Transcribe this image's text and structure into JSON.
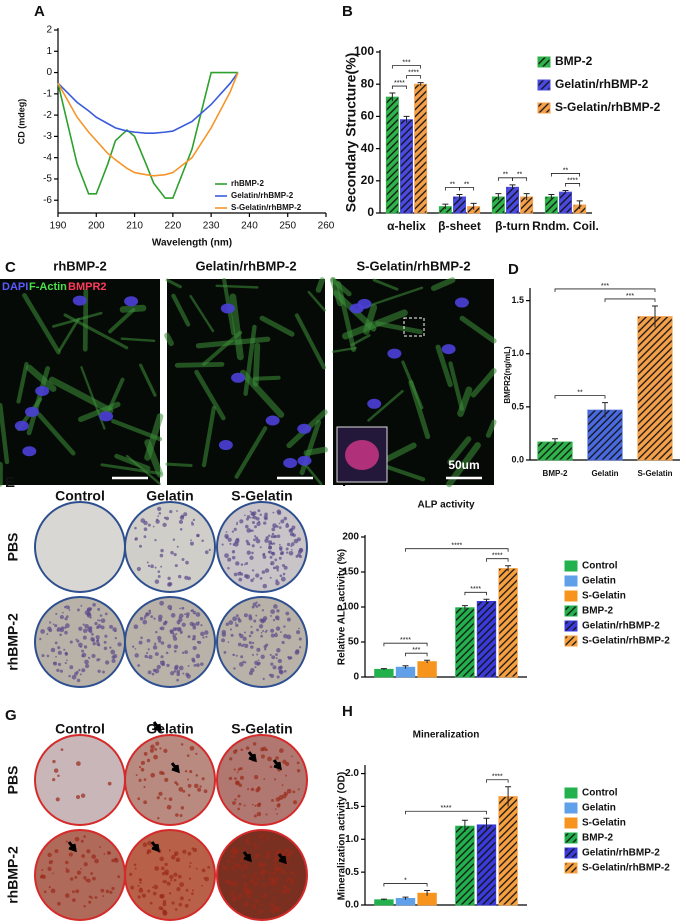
{
  "chart_data": [
    {
      "panel": "A",
      "type": "line",
      "xlabel": "Wavelength (nm)",
      "ylabel": "CD (mdeg)",
      "x": [
        190,
        195,
        198,
        200,
        203,
        205,
        208,
        210,
        213,
        215,
        218,
        220,
        225,
        230,
        235,
        237
      ],
      "xlim": [
        190,
        260
      ],
      "xticks": [
        190,
        200,
        210,
        220,
        230,
        240,
        250,
        260
      ],
      "ylim": [
        -6.6,
        2
      ],
      "yticks": [
        -6,
        -5,
        -4,
        -3,
        -2,
        -1,
        0,
        1,
        2
      ],
      "legend": "lower right",
      "series": [
        {
          "name": "rhBMP-2",
          "color": "#2ea02e",
          "values": [
            -0.5,
            -4.3,
            -5.7,
            -5.7,
            -4.3,
            -3.2,
            -2.7,
            -3.0,
            -4.3,
            -5.2,
            -5.9,
            -5.9,
            -3.6,
            0,
            0,
            0
          ]
        },
        {
          "name": "Gelatin/rhBMP-2",
          "color": "#3a5bdc",
          "values": [
            -0.5,
            -1.4,
            -1.8,
            -2.1,
            -2.4,
            -2.6,
            -2.75,
            -2.8,
            -2.85,
            -2.85,
            -2.8,
            -2.75,
            -2.3,
            -1.5,
            -0.5,
            0
          ]
        },
        {
          "name": "S-Gelatin/rhBMP-2",
          "color": "#f5952a",
          "values": [
            -0.5,
            -2.1,
            -2.8,
            -3.2,
            -3.8,
            -4.1,
            -4.5,
            -4.7,
            -4.8,
            -4.85,
            -4.8,
            -4.7,
            -4.0,
            -2.6,
            -0.9,
            0
          ]
        }
      ]
    },
    {
      "panel": "B",
      "type": "bar",
      "ylabel": "Secondary Structure(%)",
      "categories": [
        "α-helix",
        "β-sheet",
        "β-turn",
        "Rndm. Coil."
      ],
      "ylim": [
        0,
        100
      ],
      "yticks": [
        0,
        20,
        40,
        60,
        80,
        100
      ],
      "legend": "right",
      "series": [
        {
          "name": "BMP-2",
          "color": "#2fb34a",
          "hatch": true,
          "values": [
            72,
            4,
            10,
            10
          ],
          "errors": [
            2.5,
            1.5,
            2,
            1.5
          ]
        },
        {
          "name": "Gelatin/rhBMP-2",
          "color": "#4a4ae0",
          "hatch": true,
          "values": [
            58,
            10,
            16,
            13
          ],
          "errors": [
            2,
            1.5,
            1.5,
            1
          ]
        },
        {
          "name": "S-Gelatin/rhBMP-2",
          "color": "#f5a04a",
          "hatch": true,
          "values": [
            80,
            4,
            10,
            5
          ],
          "errors": [
            1,
            2,
            2,
            2.5
          ]
        }
      ],
      "annotations": [
        {
          "text": "****",
          "from": [
            0,
            0
          ],
          "to": [
            0,
            1
          ]
        },
        {
          "text": "****",
          "from": [
            0,
            1
          ],
          "to": [
            0,
            2
          ]
        },
        {
          "text": "***",
          "from": [
            0,
            0
          ],
          "to": [
            0,
            2
          ]
        },
        {
          "text": "**",
          "from": [
            1,
            0
          ],
          "to": [
            1,
            1
          ]
        },
        {
          "text": "**",
          "from": [
            1,
            1
          ],
          "to": [
            1,
            2
          ]
        },
        {
          "text": "**",
          "from": [
            2,
            0
          ],
          "to": [
            2,
            1
          ]
        },
        {
          "text": "**",
          "from": [
            2,
            1
          ],
          "to": [
            2,
            2
          ]
        },
        {
          "text": "****",
          "from": [
            3,
            1
          ],
          "to": [
            3,
            2
          ]
        },
        {
          "text": "**",
          "from": [
            3,
            0
          ],
          "to": [
            3,
            2
          ]
        }
      ]
    },
    {
      "panel": "D",
      "type": "bar",
      "ylabel": "BMPR2(ng/mL)",
      "categories": [
        "BMP-2",
        "Gelatin",
        "S-Gelatin"
      ],
      "values": [
        0.17,
        0.47,
        1.35
      ],
      "errors": [
        0.03,
        0.07,
        0.1
      ],
      "colors": [
        "#2fb34a",
        "#4a6ae0",
        "#f5a04a"
      ],
      "hatch": true,
      "ylim": [
        0,
        1.6
      ],
      "yticks": [
        {
          "value": 0,
          "label": "0.0"
        },
        0.5,
        {
          "value": 1,
          "label": "1.0"
        },
        1.5
      ],
      "annotations": [
        {
          "text": "**",
          "from": [
            0,
            0
          ],
          "to": [
            1,
            0
          ]
        },
        {
          "text": "***",
          "from": [
            1,
            0
          ],
          "to": [
            2,
            0
          ]
        },
        {
          "text": "***",
          "from": [
            0,
            0
          ],
          "to": [
            2,
            0
          ]
        }
      ]
    },
    {
      "panel": "F",
      "type": "bar",
      "title": "ALP activity",
      "ylabel": "Relative ALP activity (%)",
      "categories": [
        null,
        null
      ],
      "ylim": [
        0,
        200
      ],
      "yticks": [
        0,
        50,
        100,
        150,
        200
      ],
      "legend": "right",
      "series": [
        {
          "name": "Control",
          "color": "#22b14c",
          "hatch": false,
          "values": [
            11,
            null
          ],
          "errors": [
            1,
            null
          ]
        },
        {
          "name": "Gelatin",
          "color": "#5fa0e8",
          "hatch": false,
          "values": [
            14,
            null
          ],
          "errors": [
            2,
            null
          ]
        },
        {
          "name": "S-Gelatin",
          "color": "#f7941d",
          "hatch": false,
          "values": [
            22,
            null
          ],
          "errors": [
            2,
            null
          ]
        },
        {
          "name": "BMP-2",
          "color": "#22b14c",
          "hatch": true,
          "values": [
            null,
            99
          ],
          "errors": [
            null,
            3
          ]
        },
        {
          "name": "Gelatin/rhBMP-2",
          "color": "#3b3bdc",
          "hatch": true,
          "values": [
            null,
            108
          ],
          "errors": [
            null,
            3
          ]
        },
        {
          "name": "S-Gelatin/rhBMP-2",
          "color": "#f7a040",
          "hatch": true,
          "values": [
            null,
            155
          ],
          "errors": [
            null,
            4
          ]
        }
      ],
      "annotations": [
        {
          "text": "***",
          "from": [
            0,
            1
          ],
          "to": [
            0,
            2
          ]
        },
        {
          "text": "****",
          "from": [
            0,
            0
          ],
          "to": [
            0,
            2
          ]
        },
        {
          "text": "****",
          "from": [
            1,
            3
          ],
          "to": [
            1,
            4
          ]
        },
        {
          "text": "****",
          "from": [
            1,
            4
          ],
          "to": [
            1,
            5
          ]
        },
        {
          "text": "****",
          "from": [
            0,
            1
          ],
          "to": [
            1,
            5
          ]
        }
      ]
    },
    {
      "panel": "H",
      "type": "bar",
      "title": "Mineralization",
      "ylabel": "Mineralization activity (OD)",
      "categories": [
        null,
        null
      ],
      "ylim": [
        0,
        2.1
      ],
      "yticks": [
        {
          "value": 0,
          "label": "0.0"
        },
        0.5,
        {
          "value": 1,
          "label": "1.0"
        },
        1.5,
        {
          "value": 2,
          "label": "2.0"
        }
      ],
      "legend": "right",
      "series": [
        {
          "name": "Control",
          "color": "#22b14c",
          "hatch": false,
          "values": [
            0.08,
            null
          ],
          "errors": [
            0.01,
            null
          ]
        },
        {
          "name": "Gelatin",
          "color": "#5fa0e8",
          "hatch": false,
          "values": [
            0.1,
            null
          ],
          "errors": [
            0.02,
            null
          ]
        },
        {
          "name": "S-Gelatin",
          "color": "#f7941d",
          "hatch": false,
          "values": [
            0.18,
            null
          ],
          "errors": [
            0.04,
            null
          ]
        },
        {
          "name": "BMP-2",
          "color": "#22b14c",
          "hatch": true,
          "values": [
            null,
            1.2
          ],
          "errors": [
            null,
            0.09
          ]
        },
        {
          "name": "Gelatin/rhBMP-2",
          "color": "#3b3bdc",
          "hatch": true,
          "values": [
            null,
            1.22
          ],
          "errors": [
            null,
            0.1
          ]
        },
        {
          "name": "S-Gelatin/rhBMP-2",
          "color": "#f7a040",
          "hatch": true,
          "values": [
            null,
            1.65
          ],
          "errors": [
            null,
            0.15
          ]
        }
      ],
      "annotations": [
        {
          "text": "*",
          "from": [
            0,
            0
          ],
          "to": [
            0,
            2
          ]
        },
        {
          "text": "****",
          "from": [
            1,
            4
          ],
          "to": [
            1,
            5
          ]
        },
        {
          "text": "****",
          "from": [
            0,
            1
          ],
          "to": [
            1,
            4
          ]
        }
      ]
    }
  ],
  "image_panels": [
    {
      "panel": "C",
      "titles": [
        "rhBMP-2",
        "Gelatin/rhBMP-2",
        "S-Gelatin/rhBMP-2"
      ],
      "stains": [
        "DAPI",
        "F-Actin",
        "BMPR2"
      ],
      "scale_bar": "50um"
    },
    {
      "panel": "E",
      "columns": [
        "Control",
        "Gelatin",
        "S-Gelatin"
      ],
      "rows": [
        "PBS",
        "rhBMP-2"
      ]
    },
    {
      "panel": "G",
      "columns": [
        "Control",
        "Gelatin",
        "S-Gelatin"
      ],
      "rows": [
        "PBS",
        "rhBMP-2"
      ]
    }
  ]
}
